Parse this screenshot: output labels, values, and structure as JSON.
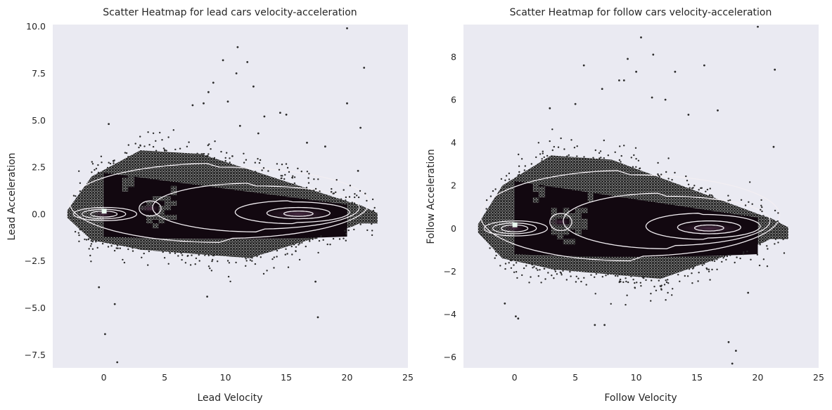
{
  "chart_data": [
    {
      "type": "scatter",
      "title": "Scatter Heatmap for lead cars velocity-acceleration",
      "xlabel": "Lead Velocity",
      "ylabel": "Lead Acceleration",
      "xlim": [
        -4.2,
        25
      ],
      "ylim": [
        -8.2,
        10.1
      ],
      "xticks": [
        0,
        5,
        10,
        15,
        20,
        25
      ],
      "xtick_labels": [
        "0",
        "5",
        "10",
        "15",
        "20",
        "25"
      ],
      "yticks": [
        -7.5,
        -5.0,
        -2.5,
        0.0,
        2.5,
        5.0,
        7.5,
        10.0
      ],
      "ytick_labels": [
        "−7.5",
        "−5.0",
        "−2.5",
        "0.0",
        "2.5",
        "5.0",
        "7.5",
        "10.0"
      ],
      "grid": false,
      "background": "#eaeaf2",
      "density_core": {
        "x_range": [
          0,
          20
        ],
        "y_range": [
          -1.2,
          2.2
        ],
        "color": "#120810"
      },
      "outliers": [
        [
          0.1,
          -6.4
        ],
        [
          1.1,
          -7.9
        ],
        [
          0.9,
          -4.8
        ],
        [
          -0.4,
          -3.9
        ],
        [
          0.4,
          4.8
        ],
        [
          11,
          8.9
        ],
        [
          9.8,
          8.2
        ],
        [
          10.9,
          7.5
        ],
        [
          11.8,
          8.1
        ],
        [
          12.3,
          6.8
        ],
        [
          10.2,
          6.0
        ],
        [
          9.0,
          7.0
        ],
        [
          8.6,
          6.5
        ],
        [
          20,
          9.9
        ],
        [
          21.4,
          7.8
        ],
        [
          20,
          5.9
        ],
        [
          21.1,
          4.6
        ],
        [
          20.9,
          2.3
        ],
        [
          17.4,
          -3.6
        ],
        [
          17.6,
          -5.5
        ],
        [
          8.5,
          -4.4
        ],
        [
          14.5,
          5.4
        ],
        [
          15.0,
          5.3
        ],
        [
          13.2,
          5.2
        ],
        [
          8.2,
          5.9
        ],
        [
          7.3,
          5.8
        ],
        [
          11.2,
          4.7
        ],
        [
          12.7,
          4.3
        ],
        [
          16.7,
          3.8
        ],
        [
          18.2,
          3.6
        ]
      ],
      "contour_levels": 5,
      "density_peaks": [
        [
          0,
          0
        ],
        [
          3.8,
          0.3
        ],
        [
          16,
          0
        ]
      ]
    },
    {
      "type": "scatter",
      "title": "Scatter Heatmap for follow cars velocity-acceleration",
      "xlabel": "Follow Velocity",
      "ylabel": "Follow Acceleration",
      "xlim": [
        -4.2,
        25
      ],
      "ylim": [
        -6.5,
        9.5
      ],
      "xticks": [
        0,
        5,
        10,
        15,
        20,
        25
      ],
      "xtick_labels": [
        "0",
        "5",
        "10",
        "15",
        "20",
        "25"
      ],
      "yticks": [
        -6,
        -4,
        -2,
        0,
        2,
        4,
        6,
        8
      ],
      "ytick_labels": [
        "−6",
        "−4",
        "−2",
        "0",
        "2",
        "4",
        "6",
        "8"
      ],
      "grid": false,
      "background": "#eaeaf2",
      "density_core": {
        "x_range": [
          0,
          20
        ],
        "y_range": [
          -1.2,
          2.2
        ],
        "color": "#120810"
      },
      "outliers": [
        [
          10.4,
          8.9
        ],
        [
          11.4,
          8.1
        ],
        [
          9.3,
          7.9
        ],
        [
          10.0,
          7.3
        ],
        [
          5.7,
          7.6
        ],
        [
          7.2,
          6.5
        ],
        [
          8.6,
          6.9
        ],
        [
          9.0,
          6.9
        ],
        [
          13.2,
          7.3
        ],
        [
          15.6,
          7.6
        ],
        [
          20,
          9.4
        ],
        [
          21.4,
          7.4
        ],
        [
          21.3,
          3.8
        ],
        [
          17.6,
          -5.3
        ],
        [
          18.2,
          -5.7
        ],
        [
          17.9,
          -6.3
        ],
        [
          0.1,
          -4.1
        ],
        [
          0.3,
          -4.2
        ],
        [
          -0.8,
          -3.5
        ],
        [
          6.6,
          -4.5
        ],
        [
          7.4,
          -4.5
        ],
        [
          19.2,
          -3.0
        ],
        [
          14.3,
          5.3
        ],
        [
          16.7,
          5.5
        ],
        [
          12.4,
          6.0
        ],
        [
          11.3,
          6.1
        ],
        [
          5.0,
          5.8
        ],
        [
          2.9,
          5.6
        ]
      ],
      "contour_levels": 5,
      "density_peaks": [
        [
          0,
          0
        ],
        [
          3.8,
          0.3
        ],
        [
          16,
          0
        ]
      ]
    }
  ]
}
